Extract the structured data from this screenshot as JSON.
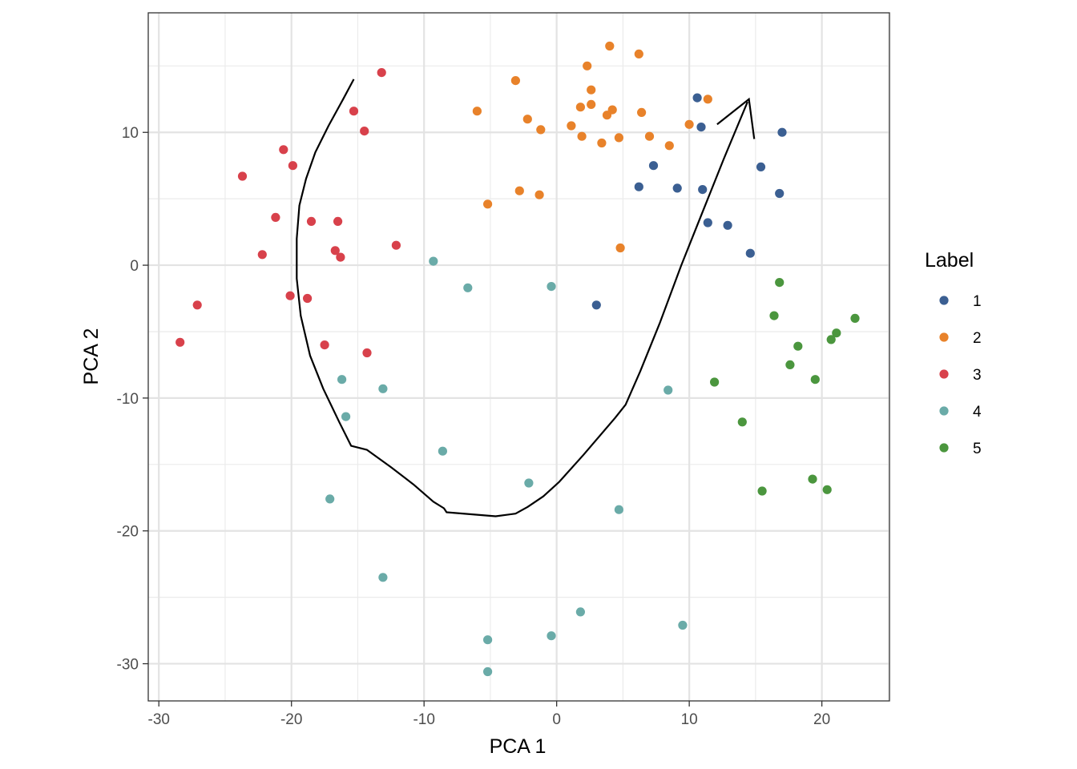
{
  "chart_data": {
    "type": "scatter",
    "title": "",
    "xlabel": "PCA 1",
    "ylabel": "PCA 2",
    "xlim": [
      -30.8,
      25.1
    ],
    "ylim": [
      -32.8,
      19.0
    ],
    "x_ticks": [
      -30,
      -20,
      -10,
      0,
      10,
      20
    ],
    "y_ticks": [
      -30,
      -20,
      -10,
      0,
      10
    ],
    "x_tick_labels": [
      "-30",
      "-20",
      "-10",
      "0",
      "10",
      "20"
    ],
    "y_tick_labels": [
      "-30",
      "-20",
      "-10",
      "0",
      "10"
    ],
    "grid": true,
    "legend": {
      "title": "Label",
      "position": "right"
    },
    "series": [
      {
        "name": "1",
        "color": "#3b5f92",
        "points": [
          [
            10.6,
            12.6
          ],
          [
            10.9,
            10.4
          ],
          [
            17.0,
            10.0
          ],
          [
            15.4,
            7.4
          ],
          [
            7.3,
            7.5
          ],
          [
            6.2,
            5.9
          ],
          [
            9.1,
            5.8
          ],
          [
            11.0,
            5.7
          ],
          [
            16.8,
            5.4
          ],
          [
            11.4,
            3.2
          ],
          [
            12.9,
            3.0
          ],
          [
            14.6,
            0.9
          ],
          [
            3.0,
            -3.0
          ]
        ]
      },
      {
        "name": "2",
        "color": "#e8822a",
        "points": [
          [
            4.0,
            16.5
          ],
          [
            6.2,
            15.9
          ],
          [
            2.3,
            15.0
          ],
          [
            -3.1,
            13.9
          ],
          [
            2.6,
            13.2
          ],
          [
            11.4,
            12.5
          ],
          [
            1.8,
            11.9
          ],
          [
            2.6,
            12.1
          ],
          [
            -6.0,
            11.6
          ],
          [
            4.2,
            11.7
          ],
          [
            6.4,
            11.5
          ],
          [
            3.8,
            11.3
          ],
          [
            -2.2,
            11.0
          ],
          [
            10.0,
            10.6
          ],
          [
            1.1,
            10.5
          ],
          [
            -1.2,
            10.2
          ],
          [
            1.9,
            9.7
          ],
          [
            4.7,
            9.6
          ],
          [
            7.0,
            9.7
          ],
          [
            3.4,
            9.2
          ],
          [
            8.5,
            9.0
          ],
          [
            -2.8,
            5.6
          ],
          [
            -1.3,
            5.3
          ],
          [
            -5.2,
            4.6
          ],
          [
            4.8,
            1.3
          ]
        ]
      },
      {
        "name": "3",
        "color": "#d8414b",
        "points": [
          [
            -13.2,
            14.5
          ],
          [
            -15.3,
            11.6
          ],
          [
            -14.5,
            10.1
          ],
          [
            -20.6,
            8.7
          ],
          [
            -19.9,
            7.5
          ],
          [
            -23.7,
            6.7
          ],
          [
            -21.2,
            3.6
          ],
          [
            -18.5,
            3.3
          ],
          [
            -16.5,
            3.3
          ],
          [
            -12.1,
            1.5
          ],
          [
            -16.7,
            1.1
          ],
          [
            -16.3,
            0.6
          ],
          [
            -22.2,
            0.8
          ],
          [
            -20.1,
            -2.3
          ],
          [
            -18.8,
            -2.5
          ],
          [
            -27.1,
            -3.0
          ],
          [
            -28.4,
            -5.8
          ],
          [
            -17.5,
            -6.0
          ],
          [
            -14.3,
            -6.6
          ]
        ]
      },
      {
        "name": "4",
        "color": "#6aaba8",
        "points": [
          [
            -9.3,
            0.3
          ],
          [
            -6.7,
            -1.7
          ],
          [
            -0.4,
            -1.6
          ],
          [
            -16.2,
            -8.6
          ],
          [
            -13.1,
            -9.3
          ],
          [
            8.4,
            -9.4
          ],
          [
            -15.9,
            -11.4
          ],
          [
            -8.6,
            -14.0
          ],
          [
            -2.1,
            -16.4
          ],
          [
            -17.1,
            -17.6
          ],
          [
            4.7,
            -18.4
          ],
          [
            -13.1,
            -23.5
          ],
          [
            1.8,
            -26.1
          ],
          [
            9.5,
            -27.1
          ],
          [
            -0.4,
            -27.9
          ],
          [
            -5.2,
            -28.2
          ],
          [
            -5.2,
            -30.6
          ]
        ]
      },
      {
        "name": "5",
        "color": "#4b963e",
        "points": [
          [
            16.8,
            -1.3
          ],
          [
            16.4,
            -3.8
          ],
          [
            22.5,
            -4.0
          ],
          [
            21.1,
            -5.1
          ],
          [
            20.7,
            -5.6
          ],
          [
            18.2,
            -6.1
          ],
          [
            17.6,
            -7.5
          ],
          [
            19.5,
            -8.6
          ],
          [
            11.9,
            -8.8
          ],
          [
            14.0,
            -11.8
          ],
          [
            15.5,
            -17.0
          ],
          [
            19.3,
            -16.1
          ],
          [
            20.4,
            -16.9
          ]
        ]
      }
    ],
    "arrow_path": [
      [
        -15.3,
        14.0
      ],
      [
        -16.1,
        12.5
      ],
      [
        -17.2,
        10.5
      ],
      [
        -18.2,
        8.5
      ],
      [
        -18.9,
        6.5
      ],
      [
        -19.4,
        4.5
      ],
      [
        -19.6,
        2.0
      ],
      [
        -19.6,
        -1.0
      ],
      [
        -19.3,
        -3.8
      ],
      [
        -18.6,
        -6.8
      ],
      [
        -17.6,
        -9.3
      ],
      [
        -16.4,
        -11.8
      ],
      [
        -15.5,
        -13.6
      ],
      [
        -14.3,
        -13.9
      ],
      [
        -12.5,
        -15.2
      ],
      [
        -10.8,
        -16.5
      ],
      [
        -9.3,
        -17.8
      ],
      [
        -8.5,
        -18.3
      ],
      [
        -8.3,
        -18.6
      ],
      [
        -4.6,
        -18.9
      ],
      [
        -3.1,
        -18.7
      ],
      [
        -2.2,
        -18.2
      ],
      [
        -1.0,
        -17.4
      ],
      [
        0.2,
        -16.3
      ],
      [
        2.0,
        -14.3
      ],
      [
        4.4,
        -11.5
      ],
      [
        5.2,
        -10.5
      ],
      [
        6.3,
        -8.0
      ],
      [
        7.8,
        -4.3
      ],
      [
        9.4,
        0.0
      ],
      [
        11.0,
        4.0
      ],
      [
        12.6,
        8.0
      ],
      [
        14.4,
        12.3
      ]
    ],
    "arrow_head": {
      "tip": [
        14.5,
        12.5
      ],
      "left": [
        12.1,
        10.6
      ],
      "right": [
        14.9,
        9.5
      ]
    }
  }
}
